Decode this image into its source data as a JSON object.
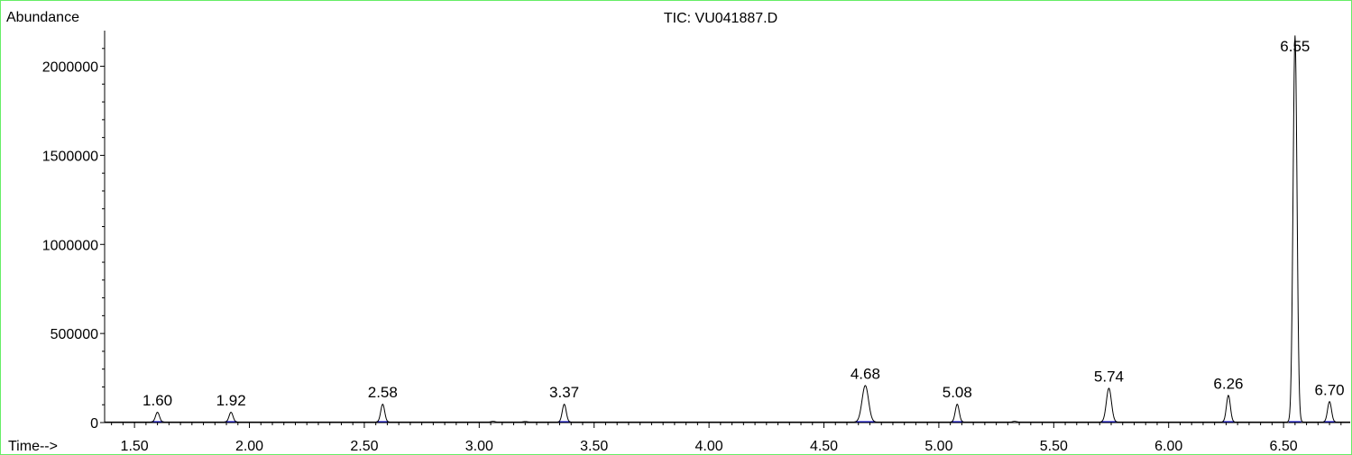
{
  "chart_data": {
    "type": "line",
    "title": "TIC: VU041887.D",
    "ylabel": "Abundance",
    "xlabel": "Time-->",
    "xlim": [
      1.37,
      6.79
    ],
    "ylim": [
      0,
      2200000
    ],
    "x_ticks": [
      1.5,
      2.0,
      2.5,
      3.0,
      3.5,
      4.0,
      4.5,
      5.0,
      5.5,
      6.0,
      6.5
    ],
    "x_tick_labels": [
      "1.50",
      "2.00",
      "2.50",
      "3.00",
      "3.50",
      "4.00",
      "4.50",
      "5.00",
      "5.50",
      "6.00",
      "6.50"
    ],
    "y_ticks": [
      0,
      500000,
      1000000,
      1500000,
      2000000
    ],
    "y_tick_labels": [
      "0",
      "500000",
      "1000000",
      "1500000",
      "2000000"
    ],
    "peaks": [
      {
        "rt": 1.6,
        "label": "1.60",
        "abundance": 55000
      },
      {
        "rt": 1.92,
        "label": "1.92",
        "abundance": 55000
      },
      {
        "rt": 2.58,
        "label": "2.58",
        "abundance": 100000
      },
      {
        "rt": 3.37,
        "label": "3.37",
        "abundance": 100000
      },
      {
        "rt": 4.68,
        "label": "4.68",
        "abundance": 205000
      },
      {
        "rt": 5.08,
        "label": "5.08",
        "abundance": 100000
      },
      {
        "rt": 5.74,
        "label": "5.74",
        "abundance": 190000
      },
      {
        "rt": 6.26,
        "label": "6.26",
        "abundance": 150000
      },
      {
        "rt": 6.55,
        "label": "6.55",
        "abundance": 2170000
      },
      {
        "rt": 6.7,
        "label": "6.70",
        "abundance": 115000
      }
    ],
    "minor_peaks": [
      {
        "rt": 3.06,
        "abundance": 4000
      },
      {
        "rt": 3.2,
        "abundance": 3000
      },
      {
        "rt": 5.33,
        "abundance": 4000
      }
    ],
    "grid": false,
    "colors": {
      "trace": "#000000",
      "baseline": "#0000cc",
      "frame": "#66ee66"
    }
  }
}
